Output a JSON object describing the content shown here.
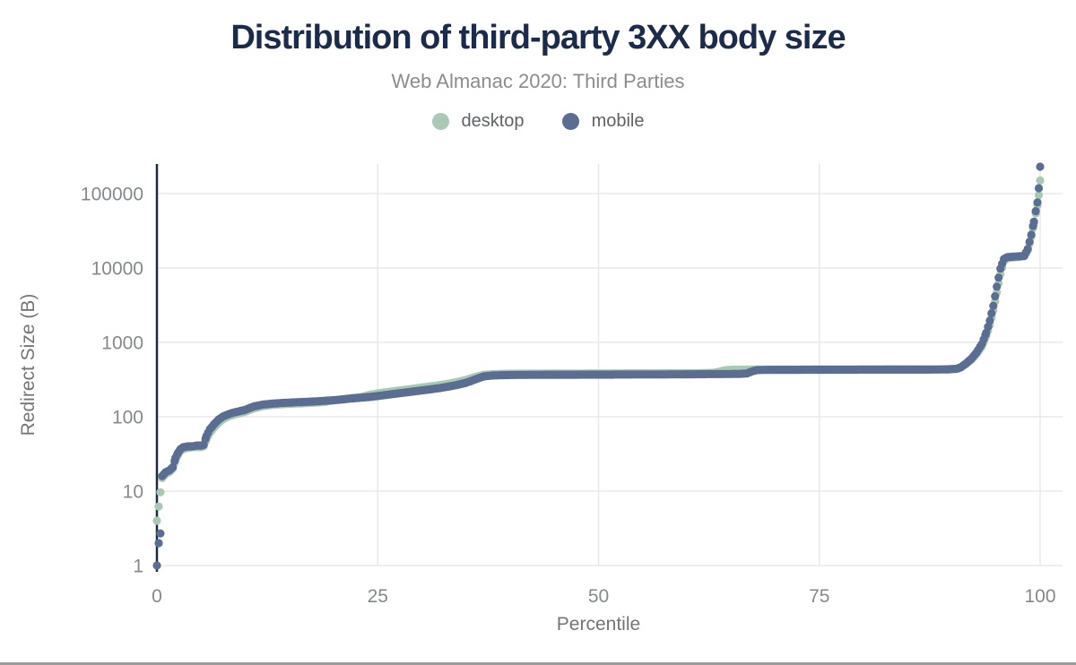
{
  "header": {
    "title": "Distribution of third-party 3XX body size",
    "subtitle": "Web Almanac 2020: Third Parties"
  },
  "colors": {
    "title_navy": "#1c2b4a",
    "subtitle_gray": "#8c8c8c",
    "tick_gray": "#85898c",
    "axis_title_gray": "#757575",
    "gridline": "#e8e8e8",
    "axis_line": "#1f2a3c",
    "desktop": "#a9c9b6",
    "mobile": "#5b6d90",
    "bottom_rule": "#9b9b9b"
  },
  "chart_data": {
    "type": "scatter",
    "title": "Distribution of third-party 3XX body size",
    "subtitle": "Web Almanac 2020: Third Parties",
    "xlabel": "Percentile",
    "ylabel": "Redirect Size (B)",
    "x_scale": "linear",
    "y_scale": "log",
    "xlim": [
      0,
      100
    ],
    "ylim": [
      1,
      250000
    ],
    "x_ticks": [
      0,
      25,
      50,
      75,
      100
    ],
    "y_ticks": [
      1,
      10,
      100,
      1000,
      10000,
      100000
    ],
    "grid": true,
    "legend_position": "top-center",
    "marker_radius": 4.6,
    "series": [
      {
        "name": "desktop",
        "color": "#a9c9b6",
        "points": [
          [
            0,
            4
          ],
          [
            0.6,
            15
          ],
          [
            0.8,
            16
          ],
          [
            1,
            17
          ],
          [
            1.4,
            18
          ],
          [
            1.8,
            20
          ],
          [
            2.1,
            26
          ],
          [
            2.4,
            31
          ],
          [
            2.7,
            35
          ],
          [
            3,
            37
          ],
          [
            3.5,
            38
          ],
          [
            4,
            39
          ],
          [
            4.5,
            39
          ],
          [
            5,
            39
          ],
          [
            5.3,
            40
          ],
          [
            5.6,
            50
          ],
          [
            6,
            61
          ],
          [
            6.5,
            72
          ],
          [
            7,
            83
          ],
          [
            7.5,
            93
          ],
          [
            8,
            100
          ],
          [
            8.5,
            105
          ],
          [
            9,
            109
          ],
          [
            9.5,
            113
          ],
          [
            10,
            117
          ],
          [
            11,
            130
          ],
          [
            12,
            139
          ],
          [
            13,
            144
          ],
          [
            14,
            147
          ],
          [
            15,
            149
          ],
          [
            16,
            151
          ],
          [
            17,
            153
          ],
          [
            18,
            155
          ],
          [
            19,
            158
          ],
          [
            20,
            166
          ],
          [
            21,
            172
          ],
          [
            22,
            178
          ],
          [
            23,
            183
          ],
          [
            24,
            196
          ],
          [
            25,
            206
          ],
          [
            26,
            214
          ],
          [
            27,
            222
          ],
          [
            28,
            230
          ],
          [
            29,
            238
          ],
          [
            30,
            247
          ],
          [
            31,
            256
          ],
          [
            32,
            266
          ],
          [
            33,
            278
          ],
          [
            34,
            293
          ],
          [
            35,
            313
          ],
          [
            36,
            342
          ],
          [
            37,
            366
          ],
          [
            38,
            374
          ],
          [
            39,
            377
          ],
          [
            40,
            379
          ],
          [
            42,
            380
          ],
          [
            44,
            380
          ],
          [
            46,
            381
          ],
          [
            48,
            381
          ],
          [
            50,
            382
          ],
          [
            52,
            382
          ],
          [
            54,
            383
          ],
          [
            56,
            383
          ],
          [
            58,
            384
          ],
          [
            60,
            385
          ],
          [
            62,
            387
          ],
          [
            63,
            389
          ],
          [
            63.6,
            402
          ],
          [
            64.2,
            420
          ],
          [
            65,
            428
          ],
          [
            66,
            430
          ],
          [
            67,
            431
          ],
          [
            68,
            431
          ],
          [
            70,
            432
          ],
          [
            72,
            432
          ],
          [
            74,
            432
          ],
          [
            76,
            433
          ],
          [
            78,
            433
          ],
          [
            80,
            433
          ],
          [
            82,
            433
          ],
          [
            84,
            434
          ],
          [
            86,
            434
          ],
          [
            88,
            434
          ],
          [
            89.5,
            436
          ],
          [
            90.5,
            443
          ],
          [
            91,
            462
          ],
          [
            91.6,
            512
          ],
          [
            92.2,
            580
          ],
          [
            92.8,
            695
          ],
          [
            93.4,
            880
          ],
          [
            93.9,
            1230
          ],
          [
            94.3,
            1720
          ],
          [
            94.7,
            2700
          ],
          [
            95.1,
            4700
          ],
          [
            95.5,
            8300
          ],
          [
            95.9,
            12300
          ],
          [
            96.3,
            13700
          ],
          [
            97,
            13900
          ],
          [
            97.6,
            14100
          ],
          [
            98.2,
            14400
          ],
          [
            98.6,
            17200
          ],
          [
            99,
            26500
          ],
          [
            99.3,
            39000
          ],
          [
            99.5,
            54000
          ],
          [
            99.7,
            69000
          ],
          [
            99.85,
            95000
          ],
          [
            100,
            150000
          ]
        ]
      },
      {
        "name": "mobile",
        "color": "#5b6d90",
        "points": [
          [
            0,
            1
          ],
          [
            0.2,
            2
          ],
          [
            0.4,
            2.7
          ],
          [
            0.6,
            16
          ],
          [
            0.8,
            17
          ],
          [
            1,
            18
          ],
          [
            1.4,
            19
          ],
          [
            1.8,
            21
          ],
          [
            2.1,
            28
          ],
          [
            2.4,
            33
          ],
          [
            2.7,
            37
          ],
          [
            3,
            39
          ],
          [
            3.5,
            40
          ],
          [
            4,
            40
          ],
          [
            4.5,
            41
          ],
          [
            5,
            41
          ],
          [
            5.3,
            42
          ],
          [
            5.6,
            55
          ],
          [
            6,
            68
          ],
          [
            6.5,
            80
          ],
          [
            7,
            92
          ],
          [
            7.5,
            101
          ],
          [
            8,
            107
          ],
          [
            8.5,
            112
          ],
          [
            9,
            116
          ],
          [
            9.5,
            120
          ],
          [
            10,
            124
          ],
          [
            11,
            138
          ],
          [
            12,
            146
          ],
          [
            13,
            150
          ],
          [
            14,
            153
          ],
          [
            15,
            155
          ],
          [
            16,
            157
          ],
          [
            17,
            159
          ],
          [
            18,
            161
          ],
          [
            19,
            164
          ],
          [
            20,
            167
          ],
          [
            21,
            171
          ],
          [
            22,
            176
          ],
          [
            23,
            180
          ],
          [
            24,
            184
          ],
          [
            25,
            190
          ],
          [
            26,
            197
          ],
          [
            27,
            204
          ],
          [
            28,
            211
          ],
          [
            29,
            218
          ],
          [
            30,
            226
          ],
          [
            31,
            234
          ],
          [
            32,
            243
          ],
          [
            33,
            254
          ],
          [
            34,
            268
          ],
          [
            35,
            286
          ],
          [
            36,
            316
          ],
          [
            37,
            348
          ],
          [
            38,
            358
          ],
          [
            39,
            362
          ],
          [
            40,
            364
          ],
          [
            42,
            366
          ],
          [
            44,
            367
          ],
          [
            46,
            367
          ],
          [
            48,
            368
          ],
          [
            50,
            368
          ],
          [
            52,
            369
          ],
          [
            54,
            370
          ],
          [
            56,
            370
          ],
          [
            58,
            371
          ],
          [
            60,
            372
          ],
          [
            62,
            374
          ],
          [
            64,
            375
          ],
          [
            66,
            377
          ],
          [
            66.8,
            382
          ],
          [
            67.4,
            408
          ],
          [
            68,
            424
          ],
          [
            69,
            427
          ],
          [
            70,
            428
          ],
          [
            72,
            428
          ],
          [
            74,
            429
          ],
          [
            76,
            429
          ],
          [
            78,
            429
          ],
          [
            80,
            430
          ],
          [
            82,
            430
          ],
          [
            84,
            430
          ],
          [
            86,
            430
          ],
          [
            88,
            431
          ],
          [
            89.5,
            433
          ],
          [
            90.5,
            440
          ],
          [
            91,
            460
          ],
          [
            91.6,
            520
          ],
          [
            92.2,
            600
          ],
          [
            92.8,
            730
          ],
          [
            93.4,
            950
          ],
          [
            93.9,
            1350
          ],
          [
            94.3,
            1950
          ],
          [
            94.7,
            3100
          ],
          [
            95.1,
            5600
          ],
          [
            95.5,
            9800
          ],
          [
            95.9,
            13200
          ],
          [
            96.3,
            14000
          ],
          [
            97,
            14200
          ],
          [
            97.6,
            14350
          ],
          [
            98.2,
            14600
          ],
          [
            98.6,
            18000
          ],
          [
            99,
            28000
          ],
          [
            99.3,
            42000
          ],
          [
            99.5,
            58000
          ],
          [
            99.7,
            76000
          ],
          [
            99.85,
            118000
          ],
          [
            100,
            230000
          ]
        ]
      }
    ]
  }
}
